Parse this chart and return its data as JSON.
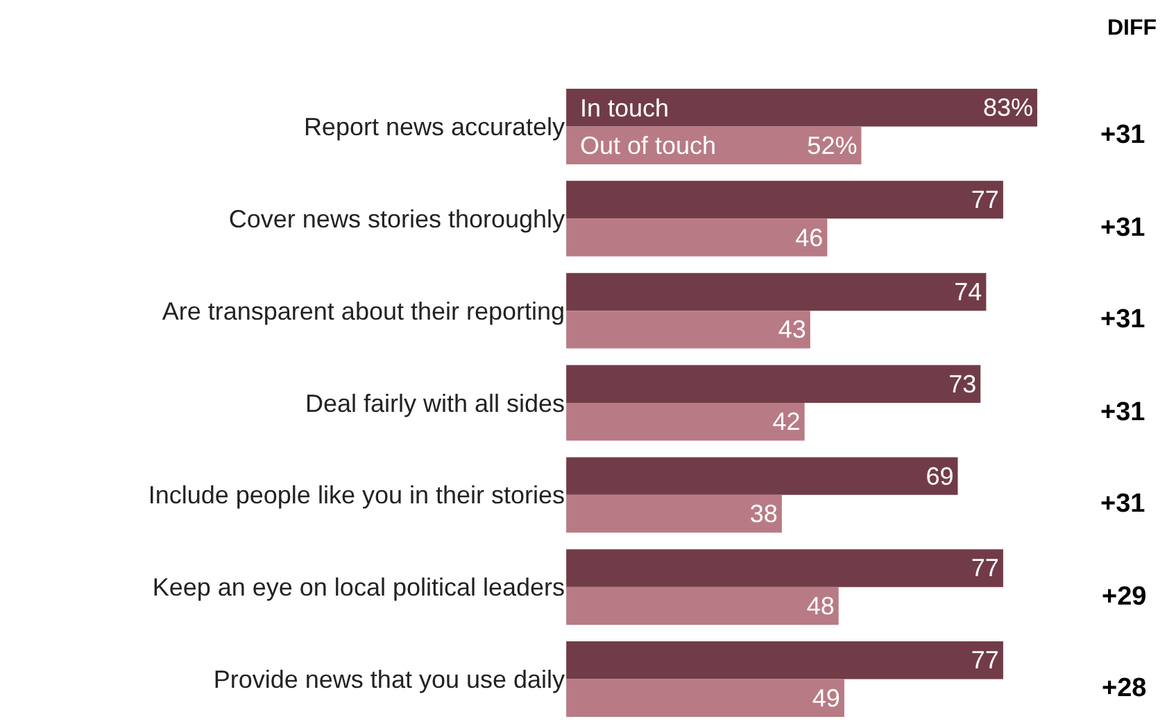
{
  "chart_data": {
    "type": "bar",
    "orientation": "horizontal",
    "legend": false,
    "categories": [
      "Report news accurately",
      "Cover news stories thoroughly",
      "Are transparent about their reporting",
      "Deal fairly with all sides",
      "Include people like you in their stories",
      "Keep an eye on local political leaders",
      "Provide news that you use daily"
    ],
    "series": [
      {
        "name": "In touch",
        "color": "#713c48",
        "values": [
          83,
          77,
          74,
          73,
          69,
          77,
          77
        ],
        "value_labels": [
          "83%",
          "77",
          "74",
          "73",
          "69",
          "77",
          "77"
        ]
      },
      {
        "name": "Out of touch",
        "color": "#b87b85",
        "values": [
          52,
          46,
          43,
          42,
          38,
          48,
          49
        ],
        "value_labels": [
          "52%",
          "46",
          "43",
          "42",
          "38",
          "48",
          "49"
        ]
      }
    ],
    "annotations": [
      "DIFF",
      "+31",
      "+31",
      "+31",
      "+31",
      "+31",
      "+29",
      "+28"
    ]
  }
}
